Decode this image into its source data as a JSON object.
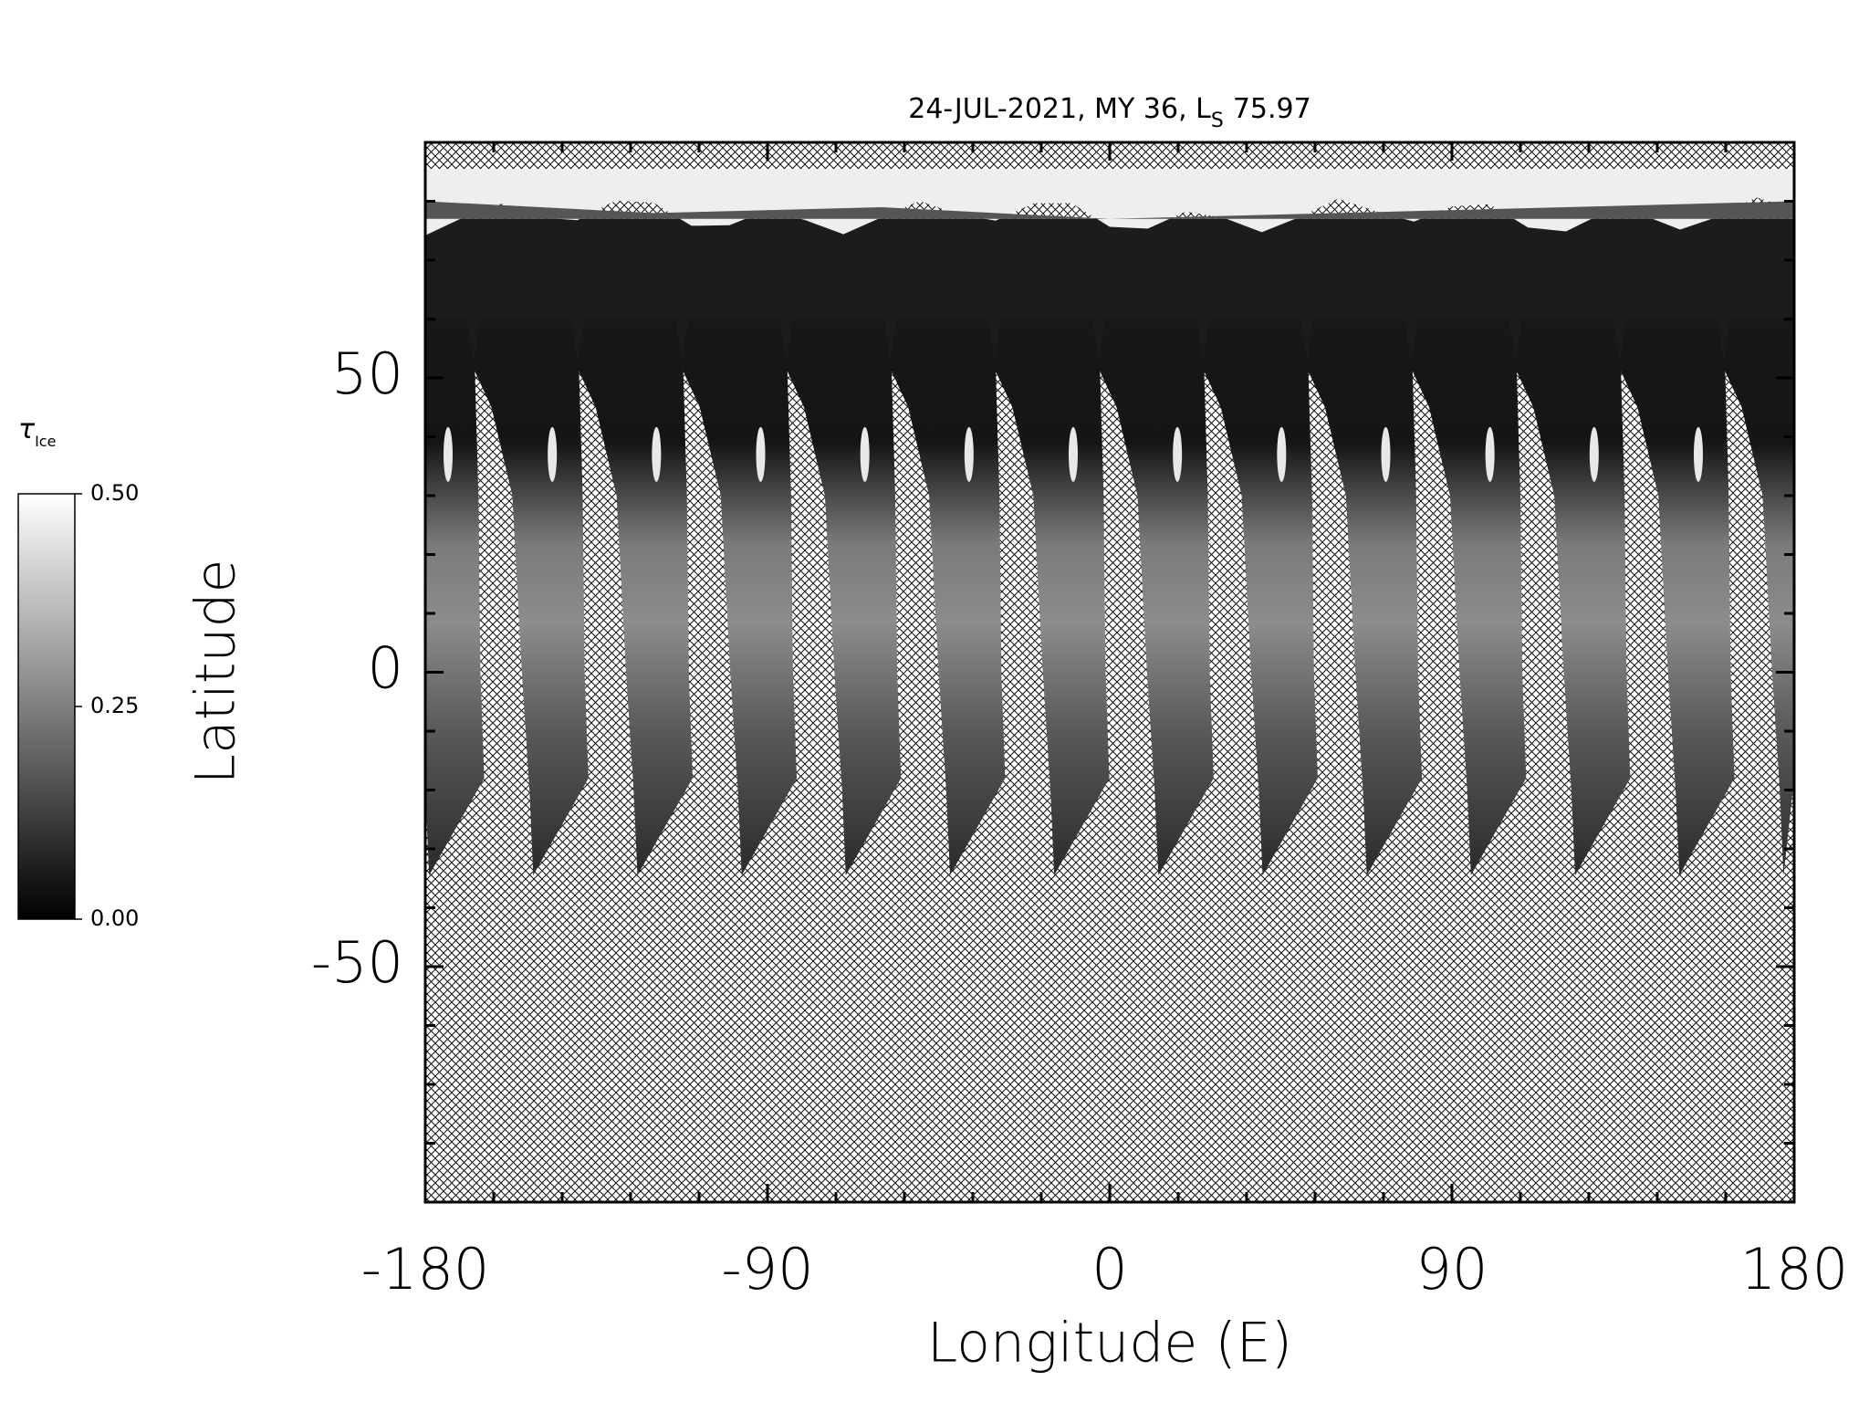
{
  "chart_data": {
    "type": "map",
    "title": "24-JUL-2021, MY 36,  L",
    "title_subscript": "S",
    "title_value": "75.97",
    "xlabel": "Longitude (E)",
    "ylabel": "Latitude",
    "xlim": [
      -180,
      180
    ],
    "ylim": [
      -90,
      90
    ],
    "xticks": [
      -180,
      -90,
      0,
      90,
      180
    ],
    "yticks": [
      -50,
      0,
      50
    ],
    "xminorticks": [
      -162,
      -144,
      -126,
      -108,
      -72,
      -54,
      -36,
      -18,
      18,
      36,
      54,
      72,
      108,
      126,
      144,
      162
    ],
    "yminorticks": [
      -80,
      -70,
      -60,
      -40,
      -30,
      -20,
      -10,
      10,
      20,
      30,
      40,
      60,
      70,
      80
    ],
    "colorbar": {
      "label": "τ",
      "label_subscript": "Ice",
      "lim": [
        0,
        0.5
      ],
      "ticks": [
        {
          "value": 0,
          "label": "0.00"
        },
        {
          "value": 0.25,
          "label": "0.25"
        },
        {
          "value": 0.5,
          "label": "0.50"
        }
      ],
      "colors": [
        "#000000",
        "#ffffff"
      ]
    }
  }
}
